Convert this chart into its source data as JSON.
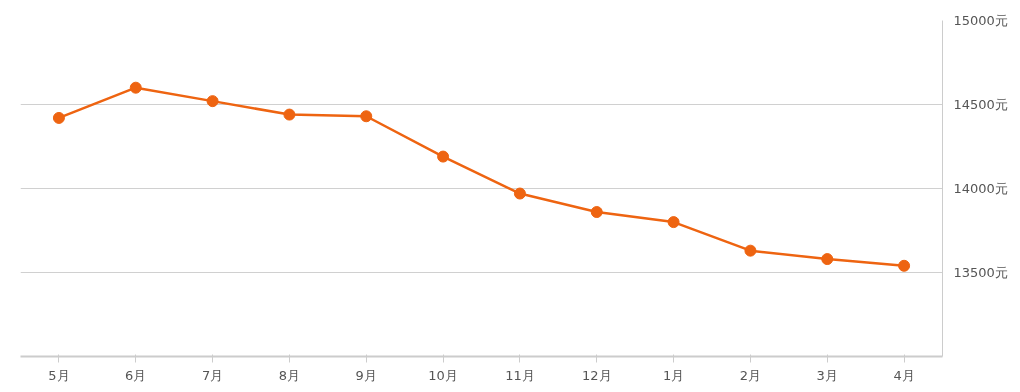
{
  "chart_data": {
    "type": "line",
    "categories": [
      "5月",
      "6月",
      "7月",
      "8月",
      "9月",
      "10月",
      "11月",
      "12月",
      "1月",
      "2月",
      "3月",
      "4月"
    ],
    "series": [
      {
        "color": "#ee6411",
        "values": [
          14420,
          14600,
          14520,
          14440,
          14430,
          14190,
          13970,
          13860,
          13800,
          13630,
          13580,
          13540
        ]
      }
    ],
    "ylim": [
      13000,
      15000
    ],
    "yticks": [
      {
        "value": 13500,
        "label": "13500元"
      },
      {
        "value": 14000,
        "label": "14000元"
      },
      {
        "value": 14500,
        "label": "14500元"
      },
      {
        "value": 15000,
        "label": "15000元"
      }
    ],
    "grid": "y",
    "marker": "circle",
    "line_style": "solid"
  }
}
